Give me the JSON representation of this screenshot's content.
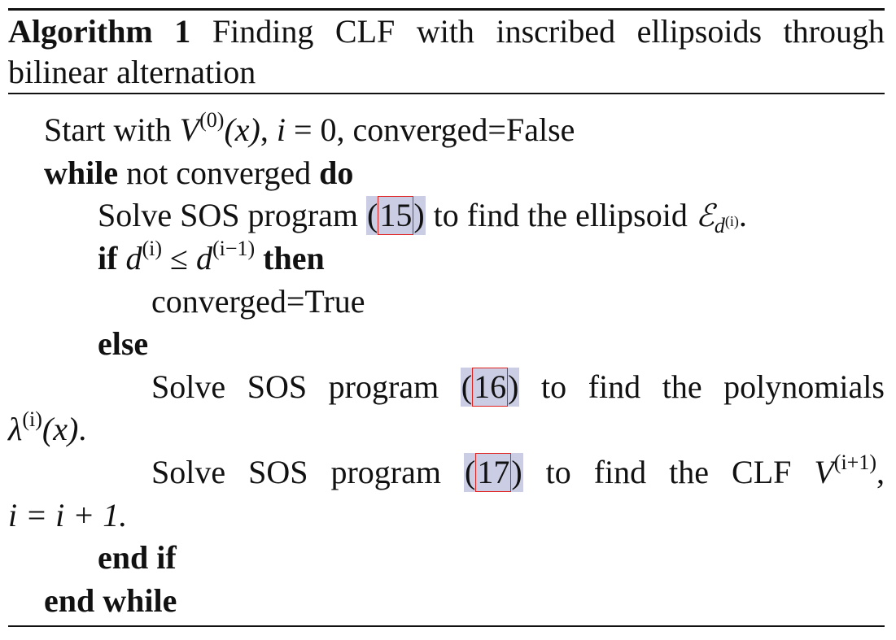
{
  "caption": {
    "label": "Algorithm 1",
    "title": "Finding CLF with inscribed ellipsoids through bilinear alternation"
  },
  "lines": {
    "l1": {
      "start": "Start with",
      "V": "V",
      "sup0": "(0)",
      "of_x": "(x)",
      "comma": ",",
      "i": "i",
      "eq0": " = 0, ",
      "converged": "converged=False"
    },
    "l2": {
      "while": "while",
      "text": "not converged",
      "do": "do"
    },
    "l3": {
      "pre": "Solve SOS program",
      "ref": "15",
      "post": "to find the ellipsoid",
      "E": "ℰ",
      "sub_d": "d",
      "sub_sup": "(i)",
      "end": "."
    },
    "l4": {
      "if": "if",
      "d1": "d",
      "s1": "(i)",
      "leq": " ≤ ",
      "d2": "d",
      "s2": "(i−1)",
      "then": "then"
    },
    "l5": {
      "text": "converged=True"
    },
    "l6": {
      "else": "else"
    },
    "l7": {
      "w1": "Solve",
      "w2": "SOS",
      "w3": "program",
      "ref": "16",
      "w4": "to",
      "w5": "find",
      "w6": "the",
      "w7": "polynomials"
    },
    "l8": {
      "lambda": "λ",
      "sup": "(i)",
      "of_x": "(x)",
      "end": "."
    },
    "l9": {
      "w1": "Solve",
      "w2": "SOS",
      "w3": "program",
      "ref": "17",
      "w4": "to",
      "w5": "find",
      "w6": "the",
      "w7": "CLF",
      "V": "V",
      "sup": "(i+1)",
      "end": ","
    },
    "l10": {
      "text": "i = i + 1."
    },
    "l11": {
      "endif": "end if"
    },
    "l12": {
      "endwhile": "end while"
    }
  },
  "colors": {
    "text": "#111111",
    "ref_highlight": "#cbcde4",
    "ref_border": "#e0201c"
  }
}
